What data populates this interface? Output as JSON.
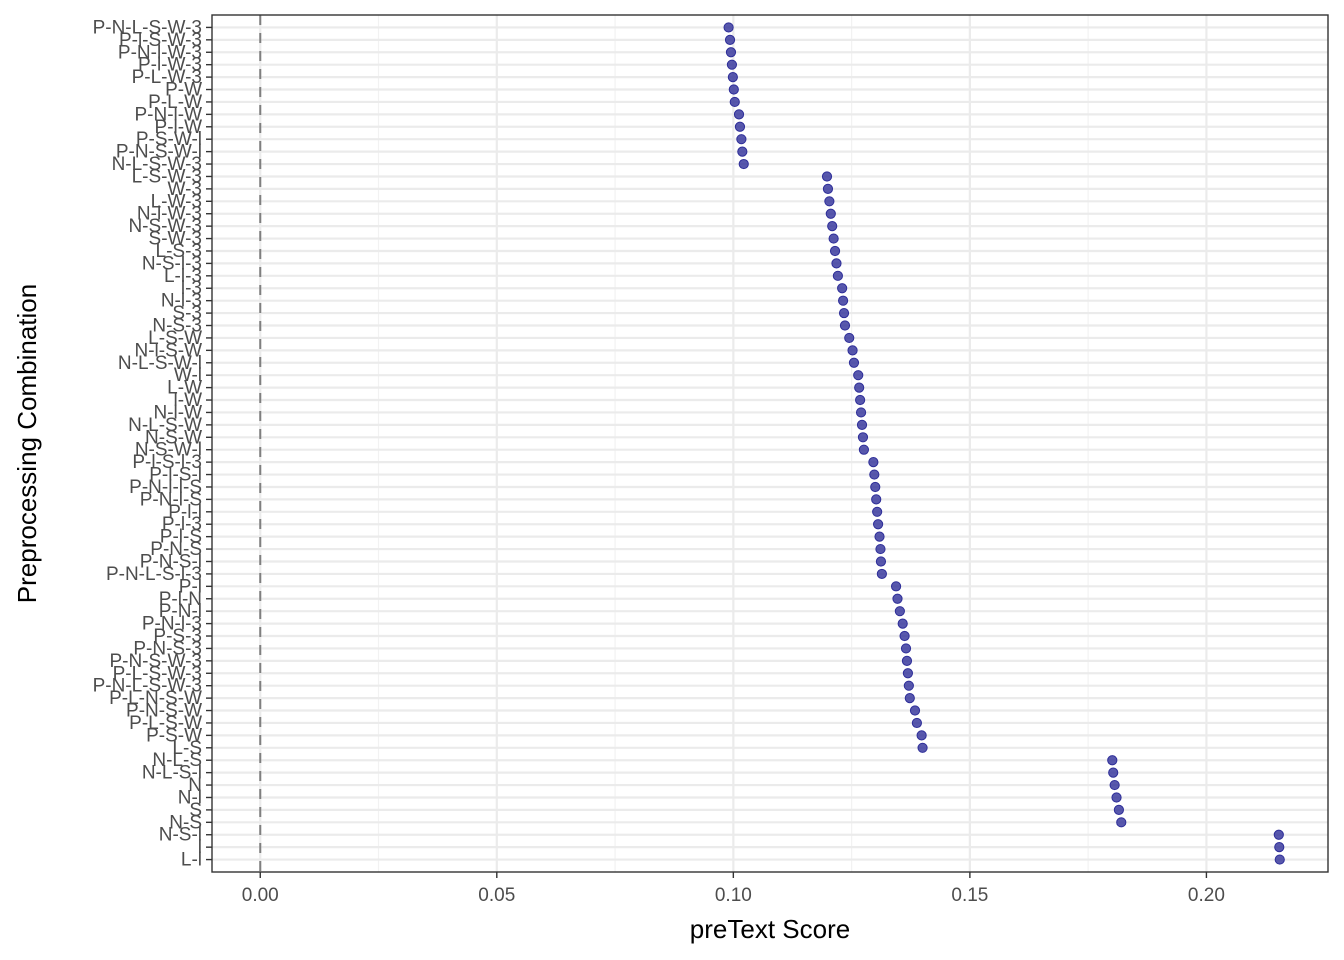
{
  "chart_data": {
    "type": "scatter",
    "xlabel": "preText Score",
    "ylabel": "Preprocessing Combination",
    "xlim": [
      -0.0102,
      0.2257
    ],
    "x_ticks": [
      0.0,
      0.05,
      0.1,
      0.15,
      0.2
    ],
    "x_tick_labels": [
      "0.00",
      "0.05",
      "0.10",
      "0.15",
      "0.20"
    ],
    "reference_line": {
      "x": 0,
      "style": "dashed",
      "color": "#7f7f7f"
    },
    "grid": true,
    "legend": "none",
    "point_color": "#2e2e99",
    "categories": [
      "L-l",
      "l",
      "N-S-l",
      "N-S",
      "S",
      "N-l",
      "N",
      "N-L-S-l",
      "N-L-S",
      "L-S",
      "P-S-W",
      "P-L-S-W",
      "P-N-S-W",
      "P-L-N-S-W",
      "P-N-L-S-W-3",
      "P-L-S-W-3",
      "P-N-S-W-3",
      "P-N-S-3",
      "P-S-3",
      "P-N-l-3",
      "P-N-l",
      "P-l-N",
      "P-l",
      "P-N-L-S-l-3",
      "P-N-S-l",
      "P-N-S",
      "P-l-S",
      "P-l-3",
      "P-l-l",
      "P-N-l-S",
      "P-N-l-l-S",
      "P-l-S-l",
      "P-l-S-l-3",
      "N-S-W-l",
      "N-S-W",
      "N-L-S-W",
      "N-l-W",
      "l-W",
      "L-W",
      "W-l",
      "N-L-S-W-l",
      "N-l-S-W",
      "L-S-W",
      "N-S-3",
      "S-3",
      "N-l-3",
      "l-3",
      "L-l-3",
      "N-S-l-3",
      "L-S-3",
      "S-W-3",
      "N-S-W-3",
      "N-l-W-3",
      "L-W-3",
      "W-3",
      "L-S-W-3",
      "N-L-S-W-3",
      "P-N-S-W-l",
      "P-S-W-l",
      "P-l-W",
      "P-N-l-W",
      "P-L-W",
      "P-W",
      "P-L-W-3",
      "P-l-W-3",
      "P-N-l-W-3",
      "P-l-S-W-3",
      "P-N-L-S-W-3"
    ],
    "values": [
      0.2155,
      0.2154,
      0.2153,
      0.182,
      0.1815,
      0.181,
      0.1806,
      0.1803,
      0.1801,
      0.14,
      0.1398,
      0.1388,
      0.1384,
      0.1373,
      0.1371,
      0.1369,
      0.1367,
      0.1365,
      0.1362,
      0.1358,
      0.1352,
      0.1347,
      0.1344,
      0.1314,
      0.1312,
      0.1311,
      0.1309,
      0.1306,
      0.1304,
      0.1302,
      0.13,
      0.1298,
      0.1296,
      0.1276,
      0.1274,
      0.1272,
      0.127,
      0.1268,
      0.1266,
      0.1264,
      0.1255,
      0.1252,
      0.1245,
      0.1236,
      0.1234,
      0.1232,
      0.123,
      0.1221,
      0.1218,
      0.1215,
      0.1212,
      0.1209,
      0.1206,
      0.1203,
      0.12,
      0.1198,
      0.1022,
      0.1019,
      0.1017,
      0.1014,
      0.1012,
      0.1003,
      0.1001,
      0.0999,
      0.0997,
      0.0995,
      0.0993,
      0.099
    ]
  }
}
